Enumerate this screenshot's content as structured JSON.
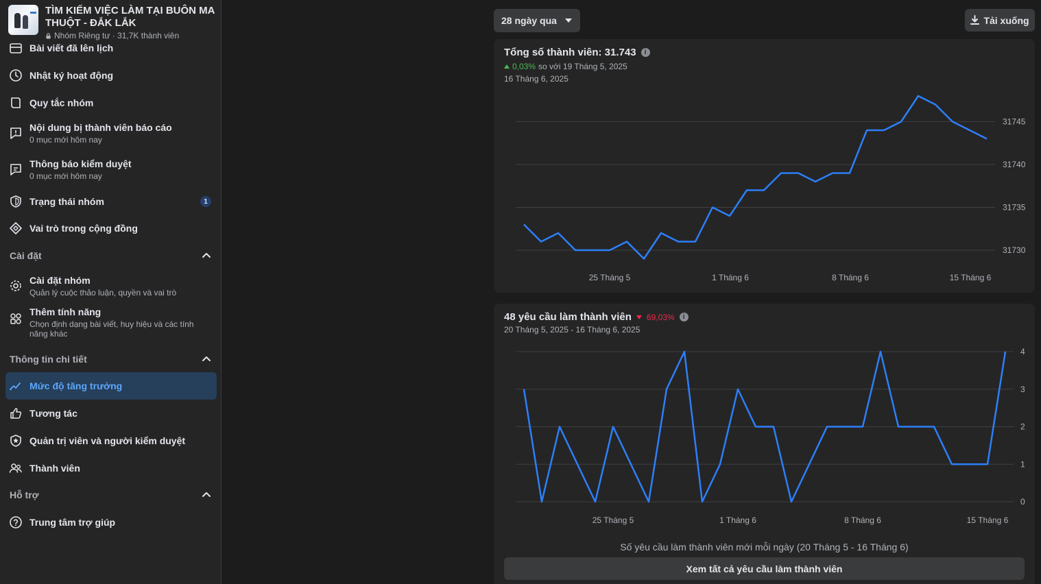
{
  "group": {
    "title_line1": "TÌM KIẾM VIỆC LÀM TẠI BUÔN MA",
    "title_line2": "THUỘT - ĐẮK LẮK",
    "meta": "Nhóm Riêng tư · 31,7K thành viên"
  },
  "sidebar": {
    "partial_item": "Bài viết đã lên lịch",
    "items": [
      {
        "label": "Nhật ký hoạt động",
        "icon": "clock-icon"
      },
      {
        "label": "Quy tắc nhóm",
        "icon": "rules-book-icon"
      },
      {
        "label": "Nội dung bị thành viên báo cáo",
        "sub": "0 mục mới hôm nay",
        "icon": "report-icon"
      },
      {
        "label": "Thông báo kiểm duyệt",
        "sub": "0 mục mới hôm nay",
        "icon": "moderation-alert-icon"
      },
      {
        "label": "Trạng thái nhóm",
        "icon": "shield-icon",
        "badge": "1"
      },
      {
        "label": "Vai trò trong cộng đồng",
        "icon": "diamond-icon"
      }
    ],
    "sections": {
      "settings": {
        "title": "Cài đặt",
        "items": [
          {
            "label": "Cài đặt nhóm",
            "sub": "Quản lý cuộc thảo luận, quyền và vai trò",
            "icon": "gear-icon"
          },
          {
            "label": "Thêm tính năng",
            "sub": "Chọn định dạng bài viết, huy hiệu và các tính năng khác",
            "icon": "features-icon"
          }
        ]
      },
      "insights": {
        "title": "Thông tin chi tiết",
        "items": [
          {
            "label": "Mức độ tăng trưởng",
            "icon": "growth-icon",
            "active": true
          },
          {
            "label": "Tương tác",
            "icon": "thumbs-up-icon"
          },
          {
            "label": "Quản trị viên và người kiểm duyệt",
            "icon": "admin-shield-icon"
          },
          {
            "label": "Thành viên",
            "icon": "members-icon"
          }
        ]
      },
      "support": {
        "title": "Hỗ trợ",
        "items": [
          {
            "label": "Trung tâm trợ giúp",
            "icon": "help-icon"
          }
        ]
      }
    }
  },
  "controls": {
    "range_label": "28 ngày qua",
    "download_label": "Tải xuống"
  },
  "members_card": {
    "title": "Tổng số thành viên: 31.743",
    "delta_value": "0,03%",
    "delta_text": "so với 19 Tháng 5, 2025",
    "date": "16 Tháng 6, 2025",
    "accent_color": "#2d7ff9"
  },
  "requests_card": {
    "title": "48 yêu cầu làm thành viên",
    "delta_value": "69,03%",
    "date_range": "20 Tháng 5, 2025 - 16 Tháng 6, 2025",
    "caption_main": "Số yêu cầu làm thành viên mới mỗi ngày",
    "caption_range": "(20 Tháng 5 - 16 Tháng 6)",
    "button_label": "Xem tất cả yêu cầu làm thành viên"
  },
  "chart_data": [
    {
      "type": "line",
      "x_ticks": [
        "25 Tháng 5",
        "1 Tháng 6",
        "8 Tháng 6",
        "15 Tháng 6"
      ],
      "y_ticks": [
        31730,
        31735,
        31740,
        31745
      ],
      "ylim": [
        31728,
        31750
      ],
      "grid": true,
      "series": [
        {
          "values": [
            31733,
            31731,
            31732,
            31730,
            31730,
            31730,
            31731,
            31729,
            31732,
            31731,
            31731,
            31735,
            31734,
            31737,
            31737,
            31739,
            31739,
            31738,
            31739,
            31739,
            31744,
            31744,
            31745,
            31748,
            31747,
            31745,
            31744,
            31743
          ]
        }
      ]
    },
    {
      "type": "line",
      "x_ticks": [
        "25 Tháng 5",
        "1 Tháng 6",
        "8 Tháng 6",
        "15 Tháng 6"
      ],
      "y_ticks": [
        0,
        1,
        2,
        3,
        4
      ],
      "ylim": [
        0,
        4
      ],
      "grid": true,
      "series": [
        {
          "values": [
            3,
            0,
            2,
            1,
            0,
            2,
            1,
            0,
            3,
            4,
            0,
            1,
            3,
            2,
            2,
            0,
            1,
            2,
            2,
            2,
            4,
            2,
            2,
            2,
            1,
            1,
            1,
            4
          ]
        }
      ]
    }
  ]
}
